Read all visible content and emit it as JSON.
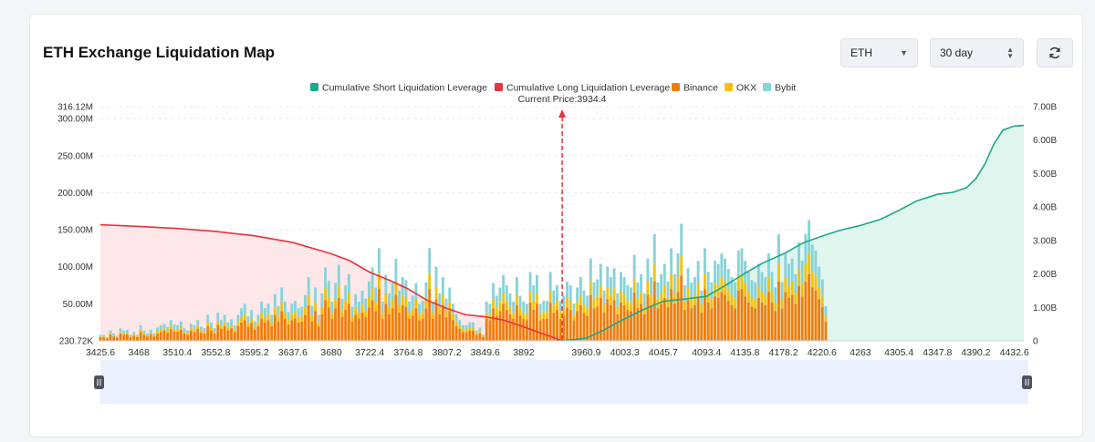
{
  "header": {
    "title": "ETH Exchange Liquidation Map",
    "coin_select": {
      "value": "ETH",
      "icon": "caret-down-icon"
    },
    "period_select": {
      "value": "30 day",
      "icon": "up-down-stepper-icon"
    },
    "refresh_icon": "refresh-icon"
  },
  "chart_data": {
    "type": "bar",
    "current_price_label": "Current Price:3934.4",
    "current_price": 3934.4,
    "legend": [
      {
        "name": "Cumulative Short Liquidation Leverage",
        "color": "#1aa88a"
      },
      {
        "name": "Cumulative Long Liquidation Leverage",
        "color": "#e8323c"
      },
      {
        "name": "Binance",
        "color": "#f07d0b"
      },
      {
        "name": "OKX",
        "color": "#f5c108"
      },
      {
        "name": "Bybit",
        "color": "#86d3d9"
      }
    ],
    "left_axis": {
      "ticks": [
        "230.72K",
        "50.00M",
        "100.00M",
        "150.00M",
        "200.00M",
        "250.00M",
        "300.00M",
        "316.12M"
      ],
      "tick_values": [
        0.23072,
        50,
        100,
        150,
        200,
        250,
        300,
        316.12
      ],
      "unit": "M",
      "range": [
        0,
        316.12
      ]
    },
    "right_axis": {
      "ticks": [
        "0",
        "1.00B",
        "2.00B",
        "3.00B",
        "4.00B",
        "5.00B",
        "6.00B",
        "7.00B"
      ],
      "tick_values": [
        0,
        1,
        2,
        3,
        4,
        5,
        6,
        7
      ],
      "unit": "B",
      "range": [
        0,
        7
      ]
    },
    "x_ticks": [
      "3425.6",
      "3468",
      "3510.4",
      "3552.8",
      "3595.2",
      "3637.6",
      "3680",
      "3722.4",
      "3764.8",
      "3807.2",
      "3849.6",
      "3892",
      "3960.9",
      "4003.3",
      "4045.7",
      "4093.4",
      "4135.8",
      "4178.2",
      "4220.6",
      "4263",
      "4305.4",
      "4347.8",
      "4390.2",
      "4432.6"
    ],
    "x_tick_values": [
      3425.6,
      3468,
      3510.4,
      3552.8,
      3595.2,
      3637.6,
      3680,
      3722.4,
      3764.8,
      3807.2,
      3849.6,
      3892,
      3960.9,
      4003.3,
      4045.7,
      4093.4,
      4135.8,
      4178.2,
      4220.6,
      4263,
      4305.4,
      4347.8,
      4390.2,
      4432.6
    ],
    "x_range": [
      3425.6,
      4443
    ],
    "long_cumulative": {
      "x": [
        3425.6,
        3468,
        3510.4,
        3552.8,
        3595.2,
        3637.6,
        3680,
        3700,
        3722.4,
        3745,
        3764.8,
        3785,
        3807.2,
        3828,
        3849.6,
        3870,
        3892,
        3910,
        3925,
        3934.4
      ],
      "y": [
        3.47,
        3.42,
        3.36,
        3.27,
        3.14,
        2.94,
        2.6,
        2.4,
        2.05,
        1.8,
        1.55,
        1.22,
        0.97,
        0.78,
        0.72,
        0.62,
        0.42,
        0.24,
        0.1,
        0.0
      ]
    },
    "short_cumulative": {
      "x": [
        3934.4,
        3960.9,
        3980,
        4003.3,
        4025,
        4045.7,
        4070,
        4093.4,
        4115,
        4135.8,
        4155,
        4178.2,
        4200,
        4220.6,
        4240,
        4263,
        4285,
        4305.4,
        4325,
        4347.8,
        4365,
        4380,
        4390.2,
        4400,
        4410,
        4420,
        4432.6,
        4443
      ],
      "y": [
        0.0,
        0.08,
        0.32,
        0.66,
        0.95,
        1.18,
        1.25,
        1.33,
        1.67,
        2.02,
        2.32,
        2.6,
        2.93,
        3.13,
        3.3,
        3.45,
        3.63,
        3.9,
        4.18,
        4.38,
        4.44,
        4.58,
        4.85,
        5.28,
        5.88,
        6.3,
        6.42,
        6.44
      ]
    },
    "bars": {
      "x_start": 3425.6,
      "x_step": 3.7,
      "binance": [
        5,
        5,
        3,
        8,
        6,
        4,
        10,
        8,
        9,
        5,
        7,
        5,
        12,
        8,
        6,
        9,
        6,
        10,
        12,
        14,
        11,
        16,
        13,
        12,
        15,
        10,
        8,
        14,
        12,
        16,
        11,
        10,
        20,
        14,
        10,
        22,
        16,
        20,
        14,
        17,
        12,
        20,
        25,
        28,
        19,
        24,
        15,
        20,
        30,
        25,
        28,
        20,
        35,
        26,
        40,
        30,
        22,
        28,
        30,
        25,
        26,
        35,
        48,
        26,
        40,
        20,
        36,
        55,
        45,
        30,
        44,
        58,
        32,
        42,
        50,
        26,
        35,
        30,
        38,
        32,
        45,
        55,
        40,
        70,
        30,
        50,
        36,
        44,
        62,
        38,
        48,
        46,
        30,
        34,
        44,
        28,
        30,
        44,
        70,
        30,
        56,
        36,
        48,
        32,
        40,
        28,
        20,
        16,
        12,
        12,
        14,
        14,
        8,
        10,
        5,
        30,
        28,
        44,
        34,
        40,
        50,
        42,
        36,
        30,
        48,
        34,
        30,
        28,
        52,
        42,
        50,
        28,
        30,
        30,
        52,
        38,
        42,
        30,
        34,
        45,
        42,
        28,
        40,
        48,
        38,
        34,
        62,
        44,
        46,
        58,
        38,
        56,
        48,
        55,
        36,
        52,
        48,
        42,
        40,
        65,
        44,
        50,
        36,
        62,
        48,
        80,
        44,
        50,
        58,
        45,
        70,
        50,
        66,
        88,
        42,
        55,
        44,
        48,
        60,
        38,
        70,
        52,
        44,
        60,
        58,
        66,
        62,
        54,
        48,
        44,
        68,
        70,
        60,
        52,
        46,
        44,
        58,
        52,
        48,
        66,
        52,
        40,
        80,
        44,
        66,
        58,
        62,
        50,
        74,
        60,
        80,
        90,
        72,
        68,
        56,
        46,
        26
      ],
      "okx": [
        1,
        1,
        1,
        2,
        1,
        1,
        2,
        2,
        2,
        1,
        2,
        1,
        3,
        2,
        1,
        2,
        1,
        3,
        3,
        3,
        3,
        4,
        3,
        3,
        4,
        2,
        2,
        3,
        3,
        4,
        3,
        2,
        5,
        4,
        2,
        5,
        4,
        5,
        4,
        4,
        3,
        5,
        7,
        8,
        5,
        6,
        4,
        5,
        8,
        7,
        8,
        5,
        10,
        8,
        12,
        8,
        6,
        8,
        9,
        7,
        7,
        10,
        14,
        8,
        12,
        5,
        10,
        16,
        14,
        8,
        12,
        16,
        9,
        12,
        15,
        7,
        10,
        8,
        11,
        9,
        13,
        16,
        12,
        20,
        8,
        14,
        10,
        12,
        18,
        11,
        14,
        13,
        8,
        10,
        12,
        8,
        9,
        13,
        20,
        8,
        16,
        10,
        14,
        9,
        12,
        8,
        6,
        4,
        3,
        3,
        4,
        4,
        2,
        3,
        1,
        8,
        8,
        12,
        10,
        12,
        14,
        12,
        10,
        8,
        14,
        10,
        8,
        8,
        15,
        12,
        14,
        8,
        9,
        9,
        15,
        11,
        12,
        9,
        10,
        13,
        12,
        8,
        12,
        14,
        11,
        10,
        18,
        13,
        14,
        17,
        11,
        16,
        14,
        16,
        10,
        15,
        14,
        12,
        12,
        19,
        13,
        15,
        10,
        18,
        14,
        24,
        13,
        15,
        17,
        13,
        20,
        15,
        19,
        26,
        12,
        16,
        13,
        14,
        18,
        11,
        20,
        15,
        13,
        18,
        17,
        19,
        18,
        16,
        14,
        13,
        20,
        20,
        18,
        15,
        13,
        13,
        17,
        15,
        14,
        19,
        15,
        12,
        24,
        13,
        19,
        17,
        18,
        15,
        22,
        18,
        24,
        28,
        22,
        20,
        16,
        14,
        8
      ],
      "bybit": [
        2,
        2,
        1,
        4,
        3,
        2,
        5,
        4,
        4,
        2,
        3,
        2,
        6,
        4,
        3,
        4,
        3,
        5,
        6,
        6,
        5,
        8,
        6,
        6,
        7,
        5,
        4,
        6,
        6,
        8,
        5,
        5,
        10,
        7,
        5,
        11,
        8,
        10,
        7,
        8,
        6,
        10,
        12,
        14,
        9,
        12,
        7,
        10,
        15,
        12,
        14,
        10,
        18,
        13,
        20,
        15,
        11,
        14,
        15,
        12,
        13,
        17,
        24,
        13,
        20,
        10,
        18,
        28,
        22,
        15,
        22,
        29,
        16,
        21,
        25,
        13,
        18,
        15,
        19,
        16,
        22,
        28,
        20,
        35,
        15,
        25,
        18,
        22,
        31,
        19,
        24,
        23,
        15,
        17,
        22,
        14,
        15,
        22,
        35,
        15,
        28,
        18,
        24,
        16,
        20,
        14,
        10,
        8,
        6,
        6,
        7,
        7,
        4,
        5,
        2,
        15,
        14,
        22,
        17,
        20,
        25,
        21,
        18,
        15,
        24,
        17,
        15,
        14,
        26,
        21,
        25,
        14,
        15,
        15,
        26,
        19,
        21,
        15,
        17,
        22,
        21,
        14,
        20,
        24,
        19,
        17,
        31,
        22,
        23,
        29,
        19,
        28,
        24,
        27,
        18,
        26,
        24,
        21,
        20,
        32,
        22,
        25,
        18,
        31,
        24,
        40,
        22,
        25,
        29,
        22,
        35,
        25,
        33,
        44,
        21,
        27,
        22,
        24,
        30,
        19,
        35,
        26,
        22,
        30,
        29,
        33,
        31,
        27,
        24,
        22,
        34,
        35,
        30,
        26,
        23,
        22,
        29,
        26,
        24,
        33,
        26,
        20,
        40,
        22,
        33,
        29,
        31,
        25,
        37,
        30,
        40,
        45,
        36,
        34,
        28,
        23,
        13
      ]
    }
  }
}
